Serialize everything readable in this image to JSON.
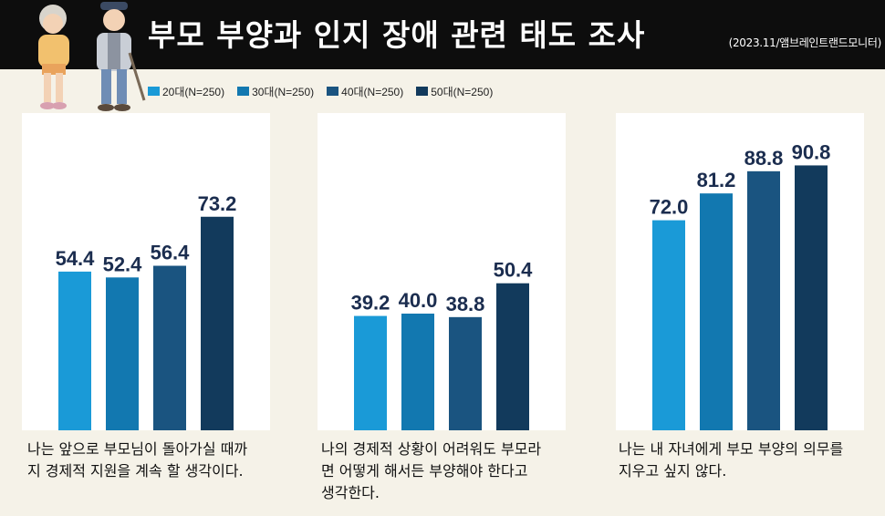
{
  "header": {
    "title": "부모 부양과 인지 장애 관련 태도 조사",
    "source": "(2023.11/앰브레인트랜드모니터)"
  },
  "colors": {
    "header_bg": "#0d0d0d",
    "background": "#f5f2e8",
    "panel_bg": "#ffffff",
    "value_label": "#1b2d4f"
  },
  "chart_data": [
    {
      "type": "bar",
      "categories": [
        "20대(N=250)",
        "30대(N=250)",
        "40대(N=250)",
        "50대(N=250)"
      ],
      "values": [
        54.4,
        52.4,
        56.4,
        73.2
      ],
      "value_labels": [
        "54.4",
        "52.4",
        "56.4",
        "73.2"
      ],
      "ylim": [
        0,
        100
      ],
      "caption_lines": [
        "나는 앞으로 부모님이 돌아가실 때까",
        "지 경제적 지원을 계속 할 생각이다."
      ]
    },
    {
      "type": "bar",
      "categories": [
        "20대(N=250)",
        "30대(N=250)",
        "40대(N=250)",
        "50대(N=250)"
      ],
      "values": [
        39.2,
        40.0,
        38.8,
        50.4
      ],
      "value_labels": [
        "39.2",
        "40.0",
        "38.8",
        "50.4"
      ],
      "ylim": [
        0,
        100
      ],
      "caption_lines": [
        "나의 경제적 상황이 어려워도 부모라",
        "면 어떻게 해서든 부양해야 한다고",
        "생각한다."
      ]
    },
    {
      "type": "bar",
      "categories": [
        "20대(N=250)",
        "30대(N=250)",
        "40대(N=250)",
        "50대(N=250)"
      ],
      "values": [
        72.0,
        81.2,
        88.8,
        90.8
      ],
      "value_labels": [
        "72.0",
        "81.2",
        "88.8",
        "90.8"
      ],
      "ylim": [
        0,
        100
      ],
      "caption_lines": [
        "나는 내 자녀에게 부모 부양의 의무를",
        "지우고 싶지 않다."
      ]
    }
  ],
  "legend": [
    {
      "label": "20대(N=250)",
      "color": "#1a9ad7"
    },
    {
      "label": "30대(N=250)",
      "color": "#1278b0"
    },
    {
      "label": "40대(N=250)",
      "color": "#1a5480"
    },
    {
      "label": "50대(N=250)",
      "color": "#123a5c"
    }
  ]
}
